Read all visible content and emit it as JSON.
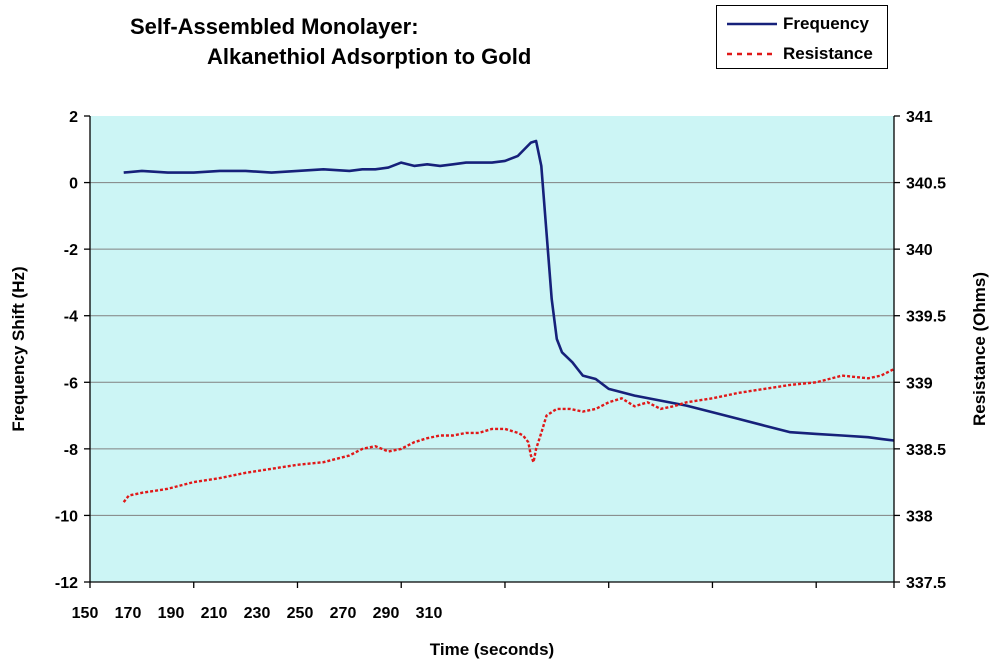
{
  "chart_data": {
    "type": "line",
    "title_line1": "Self-Assembled Monolayer:",
    "title_line2": "Alkanethiol Adsorption to Gold",
    "xlabel": "Time (seconds)",
    "ylabel_left": "Frequency Shift (Hz)",
    "ylabel_right": "Resistance (Ohms)",
    "xlim": [
      150,
      460
    ],
    "x_tick_labels": [
      "150",
      "170",
      "190",
      "210",
      "230",
      "250",
      "270",
      "290",
      "310"
    ],
    "x_tick_positions": [
      150,
      170,
      190,
      210,
      230,
      250,
      270,
      290,
      310
    ],
    "x_grid_ticks": [
      150,
      190,
      230,
      270,
      310,
      350,
      390,
      430,
      470
    ],
    "ylim_left": [
      -12,
      2
    ],
    "y_ticks_left": [
      "2",
      "0",
      "-2",
      "-4",
      "-6",
      "-8",
      "-10",
      "-12"
    ],
    "ylim_right": [
      337.5,
      341
    ],
    "y_ticks_right": [
      "341",
      "340.5",
      "340",
      "339.5",
      "339",
      "338.5",
      "338",
      "337.5"
    ],
    "grid": true,
    "plot_background": "#ccf5f5",
    "legend_position": "top-right",
    "series": [
      {
        "name": "Frequency",
        "axis": "left",
        "color": "#16217a",
        "style": "solid",
        "x": [
          163,
          170,
          180,
          190,
          200,
          210,
          220,
          230,
          240,
          250,
          255,
          260,
          265,
          270,
          275,
          280,
          285,
          290,
          295,
          300,
          305,
          310,
          315,
          320,
          322,
          324,
          326,
          328,
          330,
          332,
          334,
          336,
          338,
          340,
          345,
          350,
          355,
          360,
          370,
          380,
          390,
          400,
          410,
          420,
          430,
          440,
          450,
          455,
          460
        ],
        "y": [
          0.3,
          0.35,
          0.3,
          0.3,
          0.35,
          0.35,
          0.3,
          0.35,
          0.4,
          0.35,
          0.4,
          0.4,
          0.45,
          0.6,
          0.5,
          0.55,
          0.5,
          0.55,
          0.6,
          0.6,
          0.6,
          0.65,
          0.8,
          1.2,
          1.25,
          0.5,
          -1.5,
          -3.5,
          -4.7,
          -5.1,
          -5.25,
          -5.4,
          -5.6,
          -5.8,
          -5.9,
          -6.2,
          -6.3,
          -6.4,
          -6.55,
          -6.7,
          -6.9,
          -7.1,
          -7.3,
          -7.5,
          -7.55,
          -7.6,
          -7.65,
          -7.7,
          -7.75
        ]
      },
      {
        "name": "Resistance",
        "axis": "right",
        "color": "#e01818",
        "style": "dashed",
        "x": [
          163,
          165,
          170,
          180,
          190,
          200,
          210,
          220,
          230,
          240,
          250,
          255,
          260,
          265,
          270,
          275,
          280,
          285,
          290,
          295,
          300,
          305,
          310,
          315,
          317,
          319,
          320,
          321,
          322,
          324,
          326,
          330,
          335,
          340,
          345,
          350,
          355,
          360,
          365,
          370,
          375,
          380,
          390,
          400,
          410,
          420,
          430,
          440,
          450,
          455,
          460
        ],
        "y": [
          338.1,
          338.15,
          338.17,
          338.2,
          338.25,
          338.28,
          338.32,
          338.35,
          338.38,
          338.4,
          338.45,
          338.5,
          338.52,
          338.48,
          338.5,
          338.55,
          338.58,
          338.6,
          338.6,
          338.62,
          338.62,
          338.65,
          338.65,
          338.62,
          338.6,
          338.55,
          338.45,
          338.4,
          338.5,
          338.62,
          338.75,
          338.8,
          338.8,
          338.78,
          338.8,
          338.85,
          338.88,
          338.82,
          338.85,
          338.8,
          338.82,
          338.85,
          338.88,
          338.92,
          338.95,
          338.98,
          339.0,
          339.05,
          339.03,
          339.05,
          339.1
        ]
      }
    ]
  }
}
